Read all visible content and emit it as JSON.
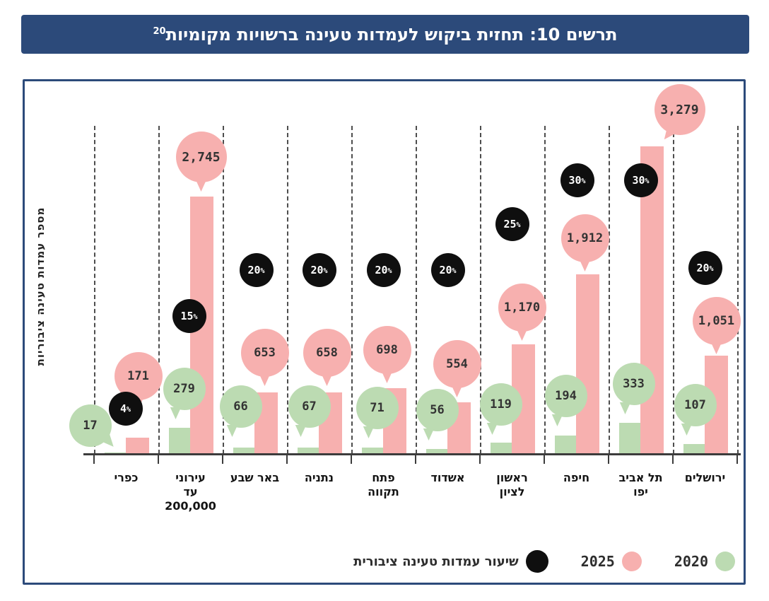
{
  "title": {
    "text": "תרשים 10: תחזית ביקוש לעמדות טעינה ברשויות מקומיות",
    "superscript": "20"
  },
  "y_axis_label": "מספר עמדות טעינה ציבוריות",
  "colors": {
    "banner_bg": "#2C4A7A",
    "banner_text": "#FFFFFF",
    "frame_border": "#2C4A7A",
    "bar_2020": "#BCDBB2",
    "bar_2025": "#F7B0AF",
    "rate_marker": "#0F0F0F"
  },
  "legend": [
    {
      "id": "rate",
      "label": "שיעור עמדות טעינה ציבורית",
      "color": "#0F0F0F",
      "dot_size": 32,
      "kind": "marker"
    },
    {
      "id": "y2025",
      "label": "2025",
      "color": "#F7B0AF",
      "dot_size": 28,
      "kind": "year"
    },
    {
      "id": "y2020",
      "label": "2020",
      "color": "#BCDBB2",
      "dot_size": 28,
      "kind": "year"
    }
  ],
  "chart_data": {
    "type": "bar",
    "orientation": "vertical",
    "direction": "rtl-chart-left-to-right-order",
    "title": "תרשים 10: תחזית ביקוש לעמדות טעינה ברשויות מקומיות",
    "ylabel": "מספר עמדות טעינה ציבוריות",
    "ylim": [
      0,
      3500
    ],
    "gridlines": "vertical-dashed",
    "categories": [
      "כפרי",
      "עירוני עד 200,000",
      "באר שבע",
      "נתניה",
      "פתח תקווה",
      "אשדוד",
      "ראשון לציון",
      "חיפה",
      "תל אביב יפו",
      "ירושלים"
    ],
    "category_display_labels": [
      "כפרי",
      "עירוני\nעד\n200,000",
      "באר שבע",
      "נתניה",
      "פתח\nתקווה",
      "אשדוד",
      "ראשון\nלציון",
      "חיפה",
      "תל אביב\nיפו",
      "ירושלים"
    ],
    "series": [
      {
        "name": "2020",
        "color": "#BCDBB2",
        "values": [
          17,
          279,
          66,
          67,
          71,
          56,
          119,
          194,
          333,
          107
        ]
      },
      {
        "name": "2025",
        "color": "#F7B0AF",
        "values": [
          171,
          2745,
          653,
          658,
          698,
          554,
          1170,
          1912,
          3279,
          1051
        ]
      },
      {
        "name": "שיעור עמדות טעינה ציבורית",
        "kind": "percent-marker",
        "color": "#0F0F0F",
        "unit": "%",
        "values": [
          4,
          15,
          20,
          20,
          20,
          20,
          25,
          30,
          30,
          20
        ]
      }
    ]
  }
}
